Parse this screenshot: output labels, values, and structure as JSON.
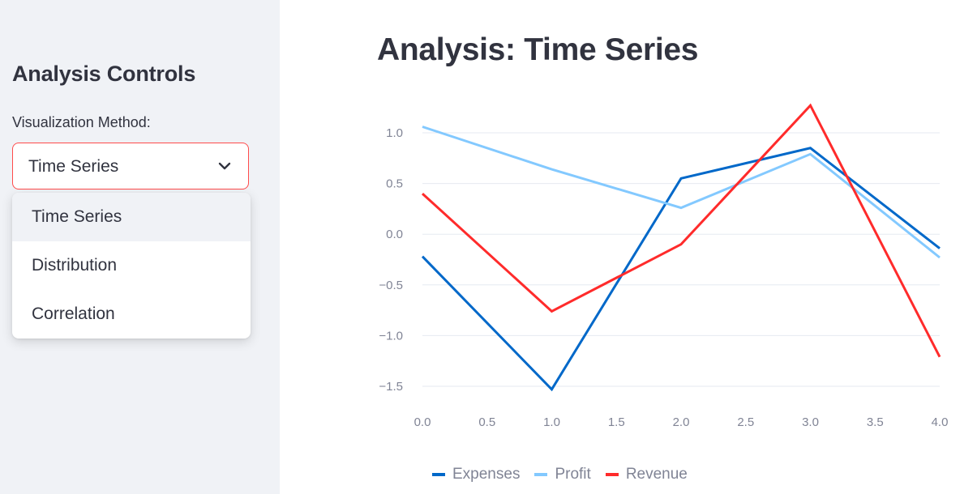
{
  "sidebar": {
    "title": "Analysis Controls",
    "select_label": "Visualization Method:",
    "selected_value": "Time Series",
    "options": [
      "Time Series",
      "Distribution",
      "Correlation"
    ],
    "accent_color": "#ff4b4b"
  },
  "main": {
    "title": "Analysis: Time Series"
  },
  "chart_data": {
    "type": "line",
    "x": [
      0,
      1,
      2,
      3,
      4
    ],
    "x_ticks": [
      "0.0",
      "0.5",
      "1.0",
      "1.5",
      "2.0",
      "2.5",
      "3.0",
      "3.5",
      "4.0"
    ],
    "y_ticks": [
      "1.0",
      "0.5",
      "0.0",
      "−0.5",
      "−1.0",
      "−1.5"
    ],
    "xlim": [
      0,
      4
    ],
    "ylim": [
      -1.6,
      1.3
    ],
    "grid": true,
    "legend_position": "bottom",
    "series": [
      {
        "name": "Expenses",
        "color": "#0068c9",
        "values": [
          -0.22,
          -1.53,
          0.55,
          0.85,
          -0.14
        ]
      },
      {
        "name": "Profit",
        "color": "#83c9ff",
        "values": [
          1.06,
          0.64,
          0.26,
          0.79,
          -0.23
        ]
      },
      {
        "name": "Revenue",
        "color": "#ff2b2b",
        "values": [
          0.4,
          -0.76,
          -0.1,
          1.27,
          -1.21
        ]
      }
    ]
  }
}
